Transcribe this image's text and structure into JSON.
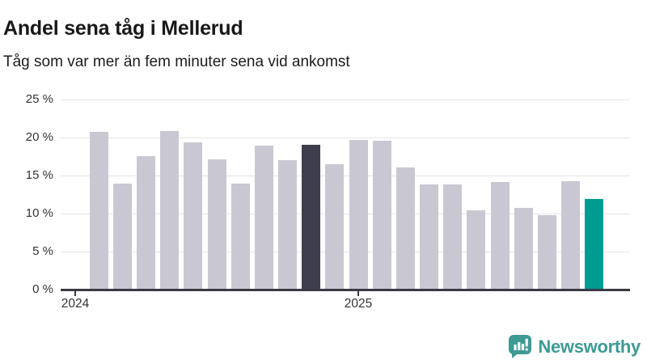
{
  "header": {
    "title": "Andel sena tåg i Mellerud",
    "subtitle": "Tåg som var mer än fem minuter sena vid ankomst"
  },
  "chart_data": {
    "type": "bar",
    "title": "Andel sena tåg i Mellerud",
    "subtitle": "Tåg som var mer än fem minuter sena vid ankomst",
    "unit": "%",
    "x_frequency": "monthly",
    "categories": [
      "2024-02",
      "2024-03",
      "2024-04",
      "2024-05",
      "2024-06",
      "2024-07",
      "2024-08",
      "2024-09",
      "2024-10",
      "2024-11",
      "2024-12",
      "2025-01",
      "2025-02",
      "2025-03",
      "2025-04",
      "2025-05",
      "2025-06",
      "2025-07",
      "2025-08",
      "2025-09",
      "2025-10",
      "2025-11"
    ],
    "values": [
      20.8,
      13.9,
      17.6,
      20.9,
      19.4,
      17.1,
      13.9,
      18.9,
      17.0,
      19.0,
      16.5,
      19.7,
      19.6,
      16.1,
      13.8,
      13.8,
      10.4,
      14.2,
      10.8,
      9.8,
      14.3,
      11.9
    ],
    "highlight": {
      "dark_index": 9,
      "current_index": 21
    },
    "ylim": [
      0,
      25
    ],
    "yticks": [
      0,
      5,
      10,
      15,
      20,
      25
    ],
    "ytick_labels": [
      "0 %",
      "5 %",
      "10 %",
      "15 %",
      "20 %",
      "25 %"
    ],
    "xticks": [
      {
        "label": "2024",
        "month_offset": 0
      },
      {
        "label": "2025",
        "month_offset": 12
      }
    ],
    "grid": true,
    "legend": false,
    "colors": {
      "bar": "#c9c8d2",
      "dark": "#3f3e4d",
      "current": "#009c92",
      "axis": "#3a3a44",
      "grid": "#e5e5e9",
      "label": "#333333"
    }
  },
  "footer": {
    "brand": "Newsworthy",
    "brand_color": "#3E9A94",
    "logo_icon": "newsworthy-chart-bubble-icon"
  }
}
